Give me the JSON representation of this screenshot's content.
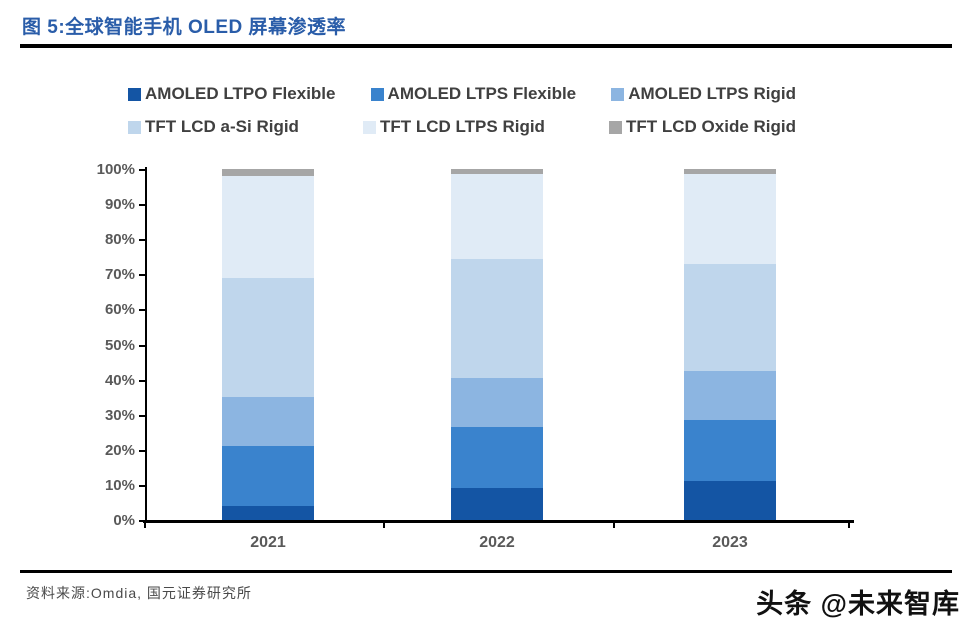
{
  "header": {
    "title": "图 5:全球智能手机 OLED 屏幕渗透率",
    "title_color": "#2A5DA9"
  },
  "footer": {
    "source_note": "资料来源:Omdia, 国元证券研究所",
    "watermark": "头条 @未来智库"
  },
  "chart_data": {
    "type": "bar",
    "stacked": true,
    "title": "全球智能手机 OLED 屏幕渗透率",
    "categories": [
      "2021",
      "2022",
      "2023"
    ],
    "series": [
      {
        "name": "AMOLED LTPO Flexible",
        "color": "#1455A4",
        "values": [
          4,
          9,
          11
        ]
      },
      {
        "name": "AMOLED LTPS Flexible",
        "color": "#3A83CD",
        "values": [
          17,
          17.5,
          17.5
        ]
      },
      {
        "name": "AMOLED LTPS Rigid",
        "color": "#8CB5E1",
        "values": [
          14,
          14,
          14
        ]
      },
      {
        "name": "TFT LCD a-Si Rigid",
        "color": "#BFD6EC",
        "values": [
          34,
          34,
          30.5
        ]
      },
      {
        "name": "TFT LCD LTPS Rigid",
        "color": "#E0EBF6",
        "values": [
          29,
          24,
          25.5
        ]
      },
      {
        "name": "TFT LCD Oxide Rigid",
        "color": "#A6A6A6",
        "values": [
          2,
          1.5,
          1.5
        ]
      }
    ],
    "xlabel": "",
    "ylabel": "",
    "ylim": [
      0,
      100
    ],
    "ytick_labels": [
      "0%",
      "10%",
      "20%",
      "30%",
      "40%",
      "50%",
      "60%",
      "70%",
      "80%",
      "90%",
      "100%"
    ],
    "legend_position": "top",
    "legend_rows": [
      3,
      3
    ],
    "grid": false,
    "axis_color": "#000000"
  }
}
